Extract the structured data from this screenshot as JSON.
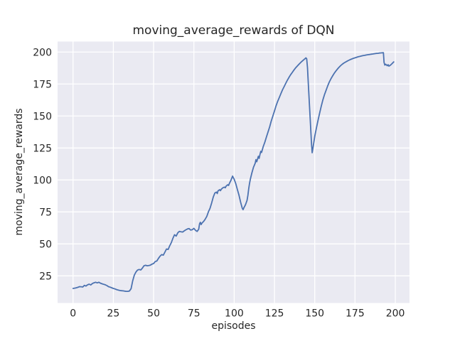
{
  "chart_data": {
    "type": "line",
    "title": "moving_average_rewards of DQN",
    "xlabel": "episodes",
    "ylabel": "moving_average_rewards",
    "x_ticks": [
      0,
      25,
      50,
      75,
      100,
      125,
      150,
      175,
      200
    ],
    "y_ticks": [
      25,
      50,
      75,
      100,
      125,
      150,
      175,
      200
    ],
    "xlim": [
      -9.6,
      208.8
    ],
    "ylim": [
      3.8,
      208.2
    ],
    "grid": true,
    "legend_position": "none",
    "style": {
      "line_color": "#4c72b0",
      "plot_bg": "#eaeaf2",
      "grid_color": "#ffffff",
      "text_color": "#262626",
      "figure_bg": "#ffffff"
    },
    "series": [
      {
        "name": "DQN",
        "points": [
          [
            0,
            15.2
          ],
          [
            1,
            15.4
          ],
          [
            2,
            15.7
          ],
          [
            3,
            16.1
          ],
          [
            4,
            16.6
          ],
          [
            5,
            16.5
          ],
          [
            6,
            16.3
          ],
          [
            7,
            17.6
          ],
          [
            8,
            17.1
          ],
          [
            9,
            18.0
          ],
          [
            10,
            18.5
          ],
          [
            11,
            17.9
          ],
          [
            12,
            19.0
          ],
          [
            13,
            19.6
          ],
          [
            14,
            20.0
          ],
          [
            15,
            19.5
          ],
          [
            16,
            20.0
          ],
          [
            17,
            19.3
          ],
          [
            18,
            18.8
          ],
          [
            19,
            18.4
          ],
          [
            20,
            18.0
          ],
          [
            21,
            17.4
          ],
          [
            22,
            16.6
          ],
          [
            23,
            16.2
          ],
          [
            24,
            15.7
          ],
          [
            25,
            15.2
          ],
          [
            26,
            14.8
          ],
          [
            27,
            14.3
          ],
          [
            28,
            13.9
          ],
          [
            29,
            13.6
          ],
          [
            30,
            13.4
          ],
          [
            31,
            13.3
          ],
          [
            32,
            13.1
          ],
          [
            33,
            12.9
          ],
          [
            34,
            12.9
          ],
          [
            35,
            13.2
          ],
          [
            36,
            15.0
          ],
          [
            37,
            21.0
          ],
          [
            38,
            25.5
          ],
          [
            39,
            28.0
          ],
          [
            40,
            29.5
          ],
          [
            41,
            30.0
          ],
          [
            42,
            29.6
          ],
          [
            43,
            31.0
          ],
          [
            44,
            32.9
          ],
          [
            45,
            33.3
          ],
          [
            46,
            32.9
          ],
          [
            47,
            33.1
          ],
          [
            48,
            33.4
          ],
          [
            49,
            34.2
          ],
          [
            50,
            34.7
          ],
          [
            51,
            36.2
          ],
          [
            52,
            36.6
          ],
          [
            53,
            38.7
          ],
          [
            54,
            40.4
          ],
          [
            55,
            41.6
          ],
          [
            56,
            41.2
          ],
          [
            57,
            43.5
          ],
          [
            58,
            46.0
          ],
          [
            59,
            45.7
          ],
          [
            60,
            48.5
          ],
          [
            61,
            51.0
          ],
          [
            62,
            54.5
          ],
          [
            63,
            57.2
          ],
          [
            64,
            56.1
          ],
          [
            65,
            58.7
          ],
          [
            66,
            59.8
          ],
          [
            67,
            59.5
          ],
          [
            68,
            59.3
          ],
          [
            69,
            60.2
          ],
          [
            70,
            61.0
          ],
          [
            71,
            61.7
          ],
          [
            72,
            62.0
          ],
          [
            73,
            60.8
          ],
          [
            74,
            61.1
          ],
          [
            75,
            62.2
          ],
          [
            76,
            60.6
          ],
          [
            77,
            59.8
          ],
          [
            78,
            61.5
          ],
          [
            78.5,
            65.7
          ],
          [
            79,
            66.9
          ],
          [
            79.5,
            65.1
          ],
          [
            80,
            66.3
          ],
          [
            81,
            67.5
          ],
          [
            82,
            69.3
          ],
          [
            83,
            71.5
          ],
          [
            84,
            75.0
          ],
          [
            85,
            77.8
          ],
          [
            86,
            82.0
          ],
          [
            87,
            86.5
          ],
          [
            88,
            89.8
          ],
          [
            89,
            90.5
          ],
          [
            89.5,
            89.4
          ],
          [
            90,
            91.5
          ],
          [
            91,
            92.4
          ],
          [
            91.5,
            91.6
          ],
          [
            92,
            92.8
          ],
          [
            93,
            93.9
          ],
          [
            94,
            94.4
          ],
          [
            94.5,
            93.9
          ],
          [
            95,
            95.2
          ],
          [
            96,
            96.3
          ],
          [
            96.5,
            95.7
          ],
          [
            97,
            97.2
          ],
          [
            98,
            99.8
          ],
          [
            99,
            103.0
          ],
          [
            100,
            100.5
          ],
          [
            101,
            97.0
          ],
          [
            102,
            92.5
          ],
          [
            103,
            88.0
          ],
          [
            104,
            82.5
          ],
          [
            105,
            78.0
          ],
          [
            105.5,
            76.8
          ],
          [
            106,
            78.2
          ],
          [
            107,
            80.6
          ],
          [
            108,
            84.0
          ],
          [
            108.5,
            88.0
          ],
          [
            109,
            93.0
          ],
          [
            109.5,
            97.0
          ],
          [
            110,
            100.5
          ],
          [
            111,
            105.5
          ],
          [
            112,
            110.0
          ],
          [
            113,
            113.0
          ],
          [
            113.5,
            115.9
          ],
          [
            114,
            114.2
          ],
          [
            115,
            118.5
          ],
          [
            115.5,
            116.9
          ],
          [
            116,
            120.0
          ],
          [
            116.5,
            122.4
          ],
          [
            117,
            121.5
          ],
          [
            118,
            126.0
          ],
          [
            119,
            129.5
          ],
          [
            120,
            133.5
          ],
          [
            121,
            137.5
          ],
          [
            122,
            141.5
          ],
          [
            123,
            146.0
          ],
          [
            124,
            150.0
          ],
          [
            125,
            154.0
          ],
          [
            126,
            158.0
          ],
          [
            127,
            161.5
          ],
          [
            128,
            164.5
          ],
          [
            129,
            167.5
          ],
          [
            130,
            170.5
          ],
          [
            131,
            173.0
          ],
          [
            132,
            175.5
          ],
          [
            133,
            178.0
          ],
          [
            134,
            180.2
          ],
          [
            135,
            182.2
          ],
          [
            136,
            184.0
          ],
          [
            137,
            185.8
          ],
          [
            138,
            187.4
          ],
          [
            139,
            188.8
          ],
          [
            140,
            190.2
          ],
          [
            141,
            191.5
          ],
          [
            142,
            192.7
          ],
          [
            143,
            193.8
          ],
          [
            144,
            194.8
          ],
          [
            144.5,
            195.5
          ],
          [
            145,
            194.7
          ],
          [
            145.5,
            188.0
          ],
          [
            146,
            175.0
          ],
          [
            147,
            152.0
          ],
          [
            148,
            128.0
          ],
          [
            148.4,
            121.3
          ],
          [
            149,
            126.0
          ],
          [
            150,
            134.0
          ],
          [
            151,
            140.5
          ],
          [
            152,
            146.5
          ],
          [
            153,
            152.0
          ],
          [
            154,
            157.5
          ],
          [
            155,
            162.5
          ],
          [
            156,
            166.5
          ],
          [
            157,
            170.0
          ],
          [
            158,
            173.5
          ],
          [
            159,
            176.5
          ],
          [
            160,
            179.0
          ],
          [
            161,
            181.2
          ],
          [
            162,
            183.2
          ],
          [
            163,
            185.0
          ],
          [
            164,
            186.6
          ],
          [
            165,
            188.0
          ],
          [
            166,
            189.3
          ],
          [
            167,
            190.4
          ],
          [
            168,
            191.3
          ],
          [
            169,
            192.1
          ],
          [
            170,
            192.8
          ],
          [
            171,
            193.5
          ],
          [
            172,
            194.1
          ],
          [
            173,
            194.6
          ],
          [
            174,
            195.1
          ],
          [
            175,
            195.5
          ],
          [
            176,
            195.9
          ],
          [
            177,
            196.3
          ],
          [
            178,
            196.6
          ],
          [
            179,
            196.9
          ],
          [
            180,
            197.2
          ],
          [
            181,
            197.4
          ],
          [
            182,
            197.7
          ],
          [
            183,
            197.9
          ],
          [
            184,
            198.1
          ],
          [
            185,
            198.3
          ],
          [
            186,
            198.5
          ],
          [
            187,
            198.7
          ],
          [
            188,
            198.9
          ],
          [
            189,
            199.0
          ],
          [
            190,
            199.2
          ],
          [
            191,
            199.3
          ],
          [
            192,
            199.4
          ],
          [
            192.6,
            199.5
          ],
          [
            193,
            192.0
          ],
          [
            193.5,
            189.8
          ],
          [
            194,
            190.5
          ],
          [
            195,
            189.3
          ],
          [
            195.5,
            190.1
          ],
          [
            196,
            189.0
          ],
          [
            197,
            189.8
          ],
          [
            198,
            191.0
          ],
          [
            199,
            192.3
          ]
        ]
      }
    ]
  }
}
